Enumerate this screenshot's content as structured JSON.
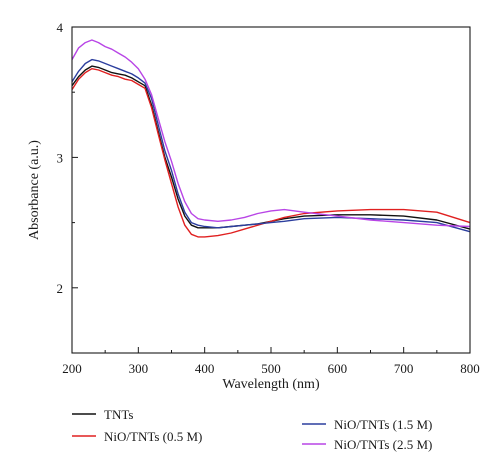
{
  "chart_data": {
    "type": "line",
    "title": "",
    "xlabel": "Wavelength (nm)",
    "ylabel": "Absorbance (a.u.)",
    "xlim": [
      200,
      800
    ],
    "ylim": [
      1.5,
      4.0
    ],
    "x_ticks": [
      200,
      300,
      400,
      500,
      600,
      700,
      800
    ],
    "y_ticks": [
      2,
      3,
      4
    ],
    "grid": false,
    "legend_position": "bottom",
    "series": [
      {
        "name": "TNTs",
        "color": "#111111",
        "x": [
          200,
          210,
          220,
          230,
          240,
          250,
          260,
          270,
          280,
          290,
          300,
          310,
          320,
          330,
          340,
          350,
          360,
          370,
          380,
          390,
          400,
          420,
          440,
          460,
          480,
          500,
          520,
          550,
          600,
          650,
          700,
          750,
          800
        ],
        "y": [
          3.55,
          3.62,
          3.67,
          3.7,
          3.69,
          3.67,
          3.65,
          3.64,
          3.63,
          3.61,
          3.58,
          3.55,
          3.4,
          3.2,
          3.0,
          2.85,
          2.68,
          2.55,
          2.48,
          2.46,
          2.46,
          2.46,
          2.47,
          2.48,
          2.49,
          2.51,
          2.53,
          2.55,
          2.56,
          2.56,
          2.55,
          2.52,
          2.45
        ]
      },
      {
        "name": "NiO/TNTs (0.5 M)",
        "color": "#e02020",
        "x": [
          200,
          210,
          220,
          230,
          240,
          250,
          260,
          270,
          280,
          290,
          300,
          310,
          320,
          330,
          340,
          350,
          360,
          370,
          380,
          390,
          400,
          420,
          440,
          460,
          480,
          500,
          520,
          550,
          600,
          650,
          700,
          750,
          800
        ],
        "y": [
          3.52,
          3.6,
          3.65,
          3.68,
          3.67,
          3.65,
          3.63,
          3.62,
          3.6,
          3.59,
          3.56,
          3.53,
          3.38,
          3.18,
          2.98,
          2.8,
          2.62,
          2.48,
          2.41,
          2.39,
          2.39,
          2.4,
          2.42,
          2.45,
          2.48,
          2.51,
          2.54,
          2.57,
          2.59,
          2.6,
          2.6,
          2.58,
          2.5
        ]
      },
      {
        "name": "NiO/TNTs (1.5 M)",
        "color": "#2c3e9e",
        "x": [
          200,
          210,
          220,
          230,
          240,
          250,
          260,
          270,
          280,
          290,
          300,
          310,
          320,
          330,
          340,
          350,
          360,
          370,
          380,
          390,
          400,
          420,
          440,
          460,
          480,
          500,
          520,
          550,
          600,
          650,
          700,
          750,
          800
        ],
        "y": [
          3.58,
          3.66,
          3.72,
          3.75,
          3.74,
          3.72,
          3.7,
          3.68,
          3.66,
          3.64,
          3.61,
          3.57,
          3.45,
          3.25,
          3.05,
          2.9,
          2.72,
          2.58,
          2.5,
          2.48,
          2.47,
          2.46,
          2.47,
          2.48,
          2.49,
          2.5,
          2.51,
          2.53,
          2.54,
          2.53,
          2.52,
          2.5,
          2.43
        ]
      },
      {
        "name": "NiO/TNTs (2.5 M)",
        "color": "#b845e6",
        "x": [
          200,
          210,
          220,
          230,
          240,
          250,
          260,
          270,
          280,
          290,
          300,
          310,
          320,
          330,
          340,
          350,
          360,
          370,
          380,
          390,
          400,
          420,
          440,
          460,
          480,
          500,
          520,
          550,
          600,
          650,
          700,
          750,
          800
        ],
        "y": [
          3.75,
          3.84,
          3.88,
          3.9,
          3.88,
          3.85,
          3.83,
          3.8,
          3.77,
          3.73,
          3.68,
          3.6,
          3.48,
          3.3,
          3.12,
          2.97,
          2.8,
          2.66,
          2.57,
          2.53,
          2.52,
          2.51,
          2.52,
          2.54,
          2.57,
          2.59,
          2.6,
          2.58,
          2.55,
          2.52,
          2.5,
          2.48,
          2.47
        ]
      }
    ]
  }
}
